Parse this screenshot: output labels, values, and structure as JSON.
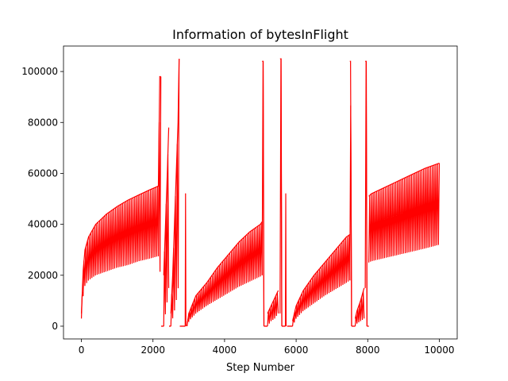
{
  "chart_data": {
    "type": "line",
    "title": "Information of bytesInFlight",
    "xlabel": "Step Number",
    "ylabel": "",
    "xlim": [
      -500,
      10500
    ],
    "ylim": [
      -5000,
      110000
    ],
    "xticks": [
      0,
      2000,
      4000,
      6000,
      8000,
      10000
    ],
    "xtick_labels": [
      "0",
      "2000",
      "4000",
      "6000",
      "8000",
      "10000"
    ],
    "yticks": [
      0,
      20000,
      40000,
      60000,
      80000,
      100000
    ],
    "ytick_labels": [
      "0",
      "20000",
      "40000",
      "60000",
      "80000",
      "100000"
    ],
    "grid": false,
    "legend": "none",
    "series": [
      {
        "color": "#ff0000",
        "style": "dense oscillation between lower and upper envelope",
        "segments": [
          {
            "x": [
              0,
              50,
              100,
              200,
              400,
              700,
              1000,
              1300,
              1600,
              1900,
              2150
            ],
            "upper": [
              5000,
              22000,
              30000,
              35000,
              40000,
              44000,
              47000,
              49500,
              51500,
              53500,
              55000
            ],
            "lower": [
              3000,
              12000,
              16000,
              18000,
              20000,
              21500,
              23000,
              24000,
              25500,
              26500,
              27500
            ]
          },
          {
            "x": [
              2150,
              2190,
              2220
            ],
            "upper": [
              55000,
              98000,
              98000
            ],
            "lower": [
              27500,
              27500,
              0
            ]
          },
          {
            "x": [
              2230,
              2260,
              2300
            ],
            "upper": [
              0,
              0,
              0
            ],
            "lower": [
              0,
              0,
              0
            ]
          },
          {
            "x": [
              2300,
              2350,
              2400,
              2440
            ],
            "upper": [
              20000,
              40000,
              60000,
              78000
            ],
            "lower": [
              0,
              5000,
              10000,
              15000
            ]
          },
          {
            "x": [
              2450,
              2470,
              2500
            ],
            "upper": [
              0,
              0,
              0
            ],
            "lower": [
              0,
              0,
              0
            ]
          },
          {
            "x": [
              2500,
              2550,
              2600,
              2650,
              2700,
              2730
            ],
            "upper": [
              5000,
              20000,
              40000,
              60000,
              80000,
              105000
            ],
            "lower": [
              0,
              3000,
              6000,
              10000,
              14000,
              20000
            ]
          },
          {
            "x": [
              2750,
              2800,
              2900
            ],
            "upper": [
              0,
              0,
              0
            ],
            "lower": [
              0,
              0,
              0
            ]
          },
          {
            "x": [
              2900,
              2920
            ],
            "upper": [
              52000,
              52000
            ],
            "lower": [
              0,
              0
            ]
          },
          {
            "x": [
              2950,
              3000,
              3200,
              3500,
              3800,
              4100,
              4400,
              4700,
              5000,
              5050
            ],
            "upper": [
              0,
              5000,
              12000,
              17000,
              23000,
              28000,
              33000,
              37000,
              40000,
              41000
            ],
            "lower": [
              0,
              2000,
              5000,
              8000,
              10500,
              13000,
              15500,
              17500,
              19500,
              20000
            ]
          },
          {
            "x": [
              5050,
              5080,
              5100
            ],
            "upper": [
              104000,
              104000,
              0
            ],
            "lower": [
              20000,
              0,
              0
            ]
          },
          {
            "x": [
              5100,
              5150,
              5200
            ],
            "upper": [
              0,
              0,
              0
            ],
            "lower": [
              0,
              0,
              0
            ]
          },
          {
            "x": [
              5200,
              5300,
              5400,
              5500
            ],
            "upper": [
              5000,
              8000,
              11000,
              14000
            ],
            "lower": [
              0,
              2000,
              3000,
              5000
            ]
          },
          {
            "x": [
              5550,
              5580,
              5600
            ],
            "upper": [
              105000,
              105000,
              0
            ],
            "lower": [
              5000,
              0,
              0
            ]
          },
          {
            "x": [
              5600,
              5650,
              5700
            ],
            "upper": [
              0,
              0,
              0
            ],
            "lower": [
              0,
              0,
              0
            ]
          },
          {
            "x": [
              5700,
              5720
            ],
            "upper": [
              52000,
              52000
            ],
            "lower": [
              0,
              0
            ]
          },
          {
            "x": [
              5750,
              5800,
              5900
            ],
            "upper": [
              0,
              0,
              0
            ],
            "lower": [
              0,
              0,
              0
            ]
          },
          {
            "x": [
              5900,
              6000,
              6200,
              6500,
              6800,
              7100,
              7400,
              7500
            ],
            "upper": [
              2000,
              8000,
              14000,
              20000,
              25000,
              30000,
              35000,
              36000
            ],
            "lower": [
              0,
              3000,
              6000,
              9000,
              12000,
              14500,
              17000,
              18000
            ]
          },
          {
            "x": [
              7500,
              7520,
              7550
            ],
            "upper": [
              104000,
              104000,
              0
            ],
            "lower": [
              18000,
              0,
              0
            ]
          },
          {
            "x": [
              7550,
              7600,
              7650
            ],
            "upper": [
              0,
              0,
              0
            ],
            "lower": [
              0,
              0,
              0
            ]
          },
          {
            "x": [
              7650,
              7700,
              7800,
              7900
            ],
            "upper": [
              3000,
              6000,
              10000,
              15000
            ],
            "lower": [
              0,
              1000,
              2000,
              3000
            ]
          },
          {
            "x": [
              7930,
              7960,
              7980
            ],
            "upper": [
              104000,
              104000,
              0
            ],
            "lower": [
              15000,
              0,
              0
            ]
          },
          {
            "x": [
              7980,
              8000,
              8030
            ],
            "upper": [
              0,
              0,
              0
            ],
            "lower": [
              0,
              0,
              0
            ]
          },
          {
            "x": [
              8030,
              8100,
              8400,
              8700,
              9000,
              9300,
              9600,
              10000
            ],
            "upper": [
              51000,
              52000,
              54000,
              56000,
              58000,
              60000,
              62000,
              64000
            ],
            "lower": [
              25000,
              25500,
              26500,
              27500,
              28500,
              29500,
              30500,
              32000
            ]
          }
        ]
      }
    ]
  }
}
